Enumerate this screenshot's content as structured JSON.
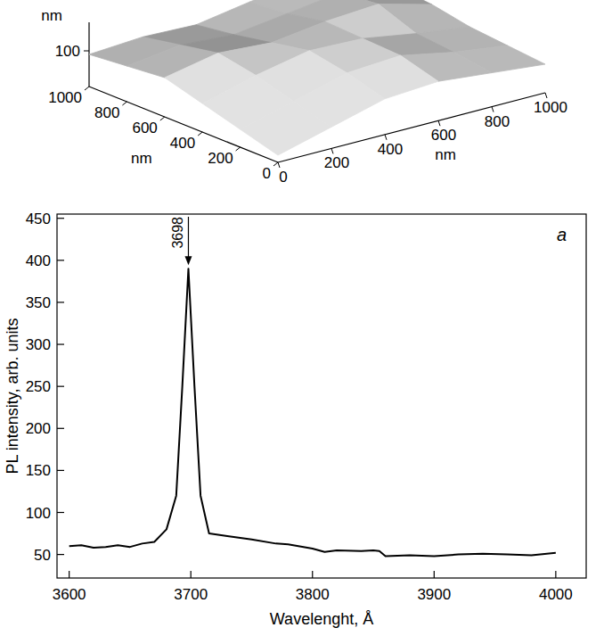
{
  "chart_data": [
    {
      "type": "surface",
      "xlabel": "nm",
      "ylabel": "nm",
      "zlabel": "nm",
      "xlim": [
        0,
        1000
      ],
      "ylim": [
        0,
        1000
      ],
      "zlim": [
        0,
        180
      ],
      "xticks": [
        0,
        200,
        400,
        600,
        800,
        1000
      ],
      "yticks": [
        0,
        200,
        400,
        600,
        800,
        1000
      ],
      "zticks": [
        100
      ],
      "x": [
        0,
        200,
        400,
        600,
        800,
        1000
      ],
      "y": [
        0,
        200,
        400,
        600,
        800,
        1000
      ],
      "z": [
        [
          20,
          60,
          100,
          110,
          95,
          80
        ],
        [
          50,
          90,
          130,
          140,
          110,
          90
        ],
        [
          80,
          120,
          150,
          145,
          120,
          100
        ],
        [
          110,
          140,
          130,
          150,
          160,
          120
        ],
        [
          100,
          120,
          110,
          130,
          150,
          130
        ],
        [
          90,
          100,
          95,
          120,
          140,
          120
        ]
      ],
      "color": "#808080"
    },
    {
      "type": "line",
      "xlabel": "Wavelenght, Å",
      "ylabel": "PL intensity, arb. units",
      "panel_label": "a",
      "annotations": [
        {
          "text": "3698",
          "x": 3698
        }
      ],
      "xlim": [
        3590,
        4025
      ],
      "ylim": [
        22,
        455
      ],
      "xticks": [
        3600,
        3700,
        3800,
        3900,
        4000
      ],
      "yticks": [
        50,
        100,
        150,
        200,
        250,
        300,
        350,
        400,
        450
      ],
      "x": [
        3600,
        3610,
        3620,
        3630,
        3640,
        3650,
        3660,
        3670,
        3680,
        3688,
        3693,
        3698,
        3703,
        3708,
        3715,
        3730,
        3750,
        3770,
        3780,
        3800,
        3810,
        3820,
        3840,
        3850,
        3855,
        3860,
        3880,
        3900,
        3920,
        3940,
        3960,
        3980,
        4000
      ],
      "values": [
        60,
        61,
        58,
        59,
        61,
        59,
        63,
        65,
        80,
        120,
        250,
        390,
        250,
        120,
        75,
        72,
        68,
        63,
        62,
        57,
        53,
        55,
        54,
        55,
        54,
        48,
        49,
        48,
        50,
        51,
        50,
        49,
        52
      ],
      "color": "#000000"
    }
  ]
}
